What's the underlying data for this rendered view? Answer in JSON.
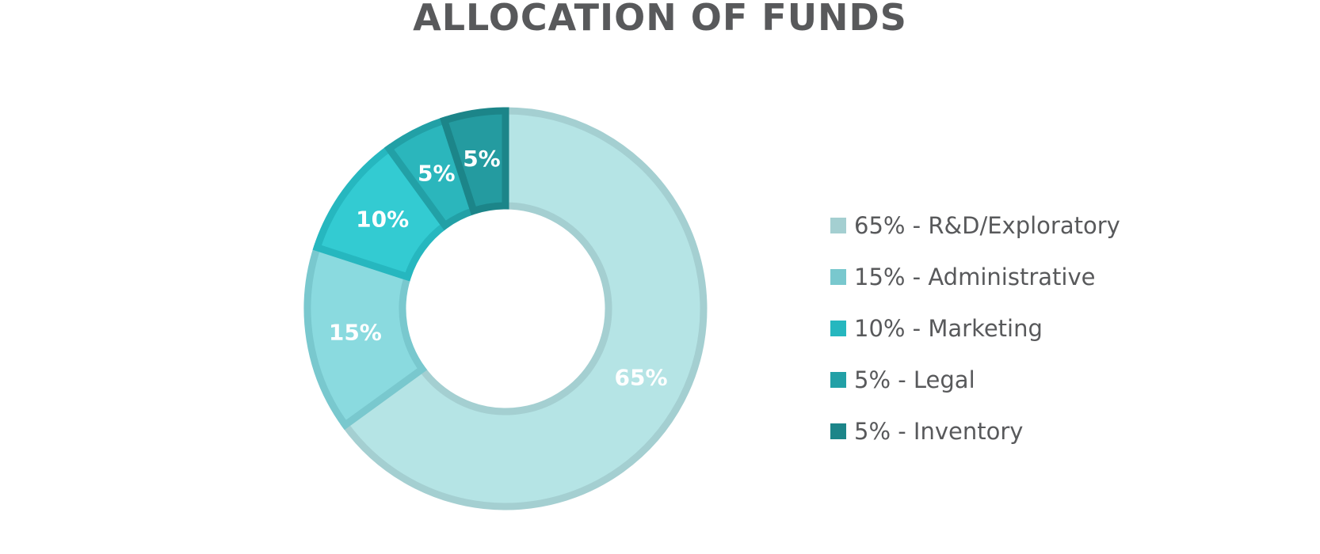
{
  "chart_data": {
    "type": "pie",
    "variant": "donut",
    "title": "ALLOCATION OF FUNDS",
    "slices": [
      {
        "label": "65% - R&D/Exploratory",
        "value": 65,
        "data_label": "65%",
        "color": "#b5e4e5",
        "stroke": "#a4cfd1"
      },
      {
        "label": "15% - Administrative",
        "value": 15,
        "data_label": "15%",
        "color": "#8adadf",
        "stroke": "#79c8ce"
      },
      {
        "label": "10% - Marketing",
        "value": 10,
        "data_label": "10%",
        "color": "#33cbd2",
        "stroke": "#26b7bf"
      },
      {
        "label": "5% - Legal",
        "value": 5,
        "data_label": "5%",
        "color": "#2bb6bc",
        "stroke": "#22a0a6"
      },
      {
        "label": "5% - Inventory",
        "value": 5,
        "data_label": "5%",
        "color": "#249ba0",
        "stroke": "#1c8589"
      }
    ],
    "start_angle": "12 o'clock",
    "direction": "clockwise",
    "legend_position": "right"
  }
}
